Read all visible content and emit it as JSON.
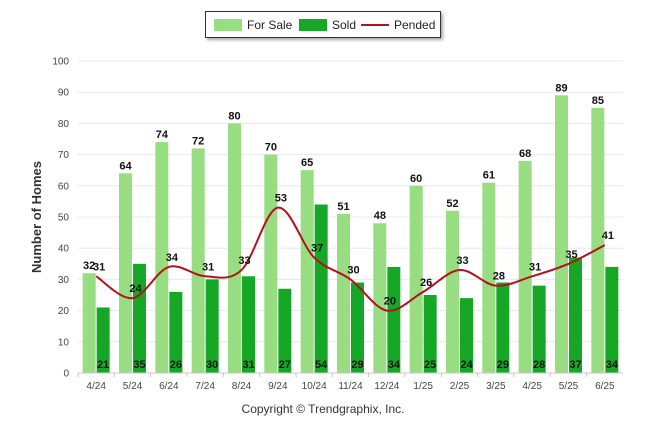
{
  "chart_data": {
    "type": "bar",
    "categories": [
      "4/24",
      "5/24",
      "6/24",
      "7/24",
      "8/24",
      "9/24",
      "10/24",
      "11/24",
      "12/24",
      "1/25",
      "2/25",
      "3/25",
      "4/25",
      "5/25",
      "6/25"
    ],
    "series": [
      {
        "name": "For Sale",
        "type": "bar",
        "color": "#98dd82",
        "values": [
          32,
          64,
          74,
          72,
          80,
          70,
          65,
          51,
          48,
          60,
          52,
          61,
          68,
          89,
          85
        ]
      },
      {
        "name": "Sold",
        "type": "bar",
        "color": "#16a727",
        "values": [
          21,
          35,
          26,
          30,
          31,
          27,
          54,
          29,
          34,
          25,
          24,
          29,
          28,
          37,
          34
        ]
      },
      {
        "name": "Pended",
        "type": "line",
        "color": "#b3121b",
        "values": [
          31,
          24,
          34,
          31,
          33,
          53,
          37,
          30,
          20,
          26,
          33,
          28,
          31,
          35,
          41
        ]
      }
    ],
    "ylabel": "Number of Homes",
    "xlabel": "",
    "ylim": [
      0,
      100
    ],
    "yticks": [
      0,
      10,
      20,
      30,
      40,
      50,
      60,
      70,
      80,
      90,
      100
    ],
    "grid": true,
    "legend_position": "top-center"
  },
  "copyright": "Copyright © Trendgraphix, Inc."
}
